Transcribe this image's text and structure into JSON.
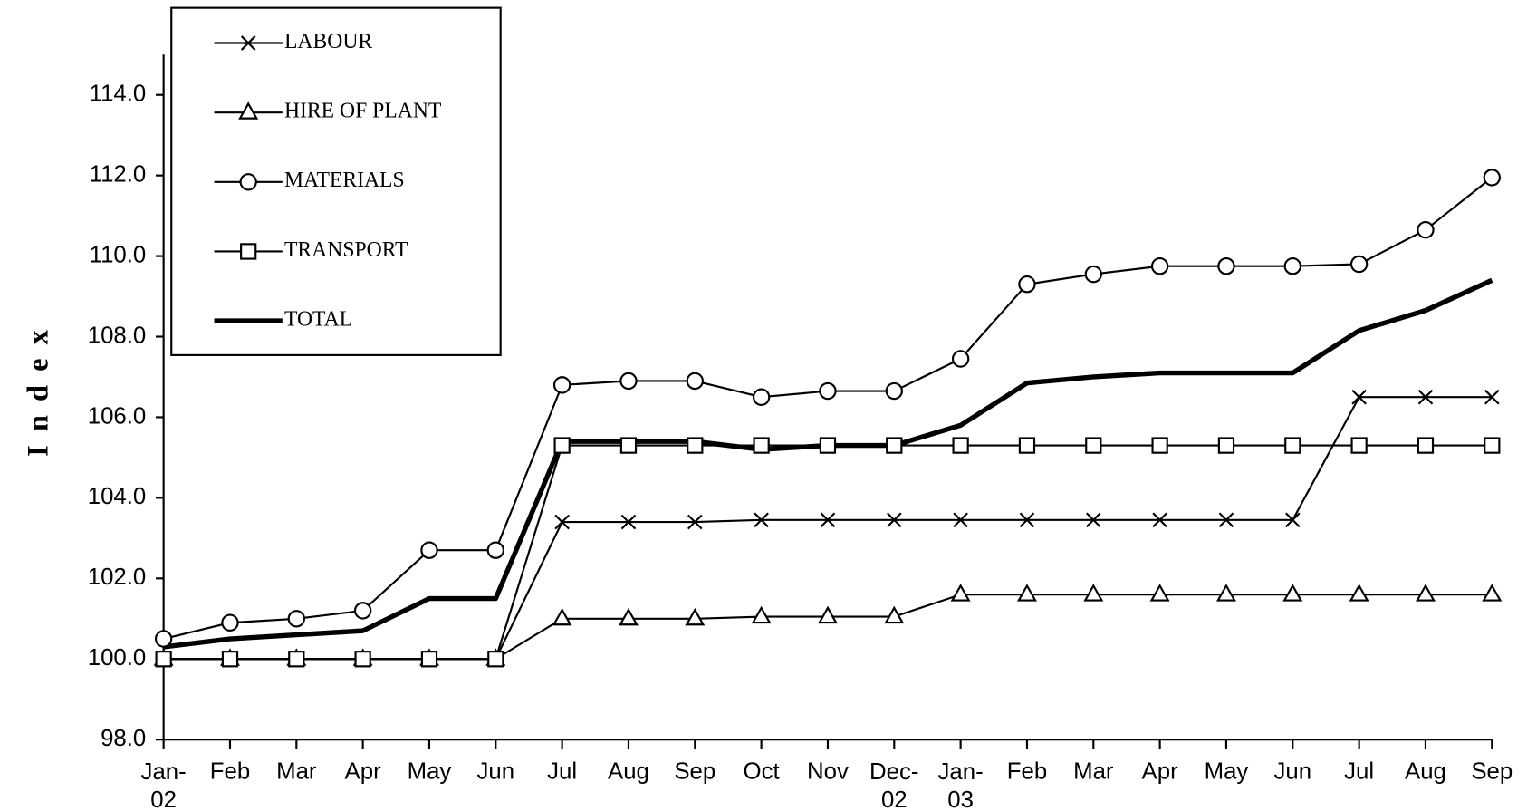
{
  "chart_data": {
    "type": "line",
    "y_label": "Index",
    "categories": [
      "Jan-02",
      "Feb",
      "Mar",
      "Apr",
      "May",
      "Jun",
      "Jul",
      "Aug",
      "Sep",
      "Oct",
      "Nov",
      "Dec-02",
      "Jan-03",
      "Feb",
      "Mar",
      "Apr",
      "May",
      "Jun",
      "Jul",
      "Aug",
      "Sep"
    ],
    "ylim": [
      98,
      115
    ],
    "yticks": [
      {
        "value": 98,
        "label": "98.0"
      },
      {
        "value": 100,
        "label": "100.0"
      },
      {
        "value": 102,
        "label": "102.0"
      },
      {
        "value": 104,
        "label": "104.0"
      },
      {
        "value": 106,
        "label": "106.0"
      },
      {
        "value": 108,
        "label": "108.0"
      },
      {
        "value": 110,
        "label": "110.0"
      },
      {
        "value": 112,
        "label": "112.0"
      },
      {
        "value": 114,
        "label": "114.0"
      }
    ],
    "grid": false,
    "legend": "upper left",
    "series": [
      {
        "name": "LABOUR",
        "color": "#000000",
        "marker": "x",
        "line_width": 2,
        "values": [
          100,
          100,
          100,
          100,
          100,
          100,
          103.4,
          103.4,
          103.4,
          103.45,
          103.45,
          103.45,
          103.45,
          103.45,
          103.45,
          103.45,
          103.45,
          103.45,
          106.5,
          106.5,
          106.5
        ]
      },
      {
        "name": "HIRE OF PLANT",
        "color": "#000000",
        "marker": "triangle",
        "line_width": 2,
        "values": [
          100,
          100,
          100,
          100,
          100,
          100,
          101.0,
          101.0,
          101.0,
          101.05,
          101.05,
          101.05,
          101.6,
          101.6,
          101.6,
          101.6,
          101.6,
          101.6,
          101.6,
          101.6,
          101.6
        ]
      },
      {
        "name": "MATERIALS",
        "color": "#000000",
        "marker": "circle",
        "line_width": 2,
        "values": [
          100.5,
          100.9,
          101.0,
          101.2,
          102.7,
          102.7,
          106.8,
          106.9,
          106.9,
          106.5,
          106.65,
          106.65,
          107.45,
          109.3,
          109.55,
          109.75,
          109.75,
          109.75,
          109.8,
          110.65,
          111.95
        ]
      },
      {
        "name": "TRANSPORT",
        "color": "#000000",
        "marker": "square",
        "line_width": 2,
        "values": [
          100,
          100,
          100,
          100,
          100,
          100,
          105.3,
          105.3,
          105.3,
          105.3,
          105.3,
          105.3,
          105.3,
          105.3,
          105.3,
          105.3,
          105.3,
          105.3,
          105.3,
          105.3,
          105.3
        ]
      },
      {
        "name": "TOTAL",
        "color": "#000000",
        "marker": "none",
        "line_width": 5,
        "values": [
          100.3,
          100.5,
          100.6,
          100.7,
          101.5,
          101.5,
          105.4,
          105.4,
          105.4,
          105.2,
          105.3,
          105.3,
          105.8,
          106.85,
          107.0,
          107.1,
          107.1,
          107.1,
          108.15,
          108.65,
          109.4
        ]
      }
    ]
  }
}
